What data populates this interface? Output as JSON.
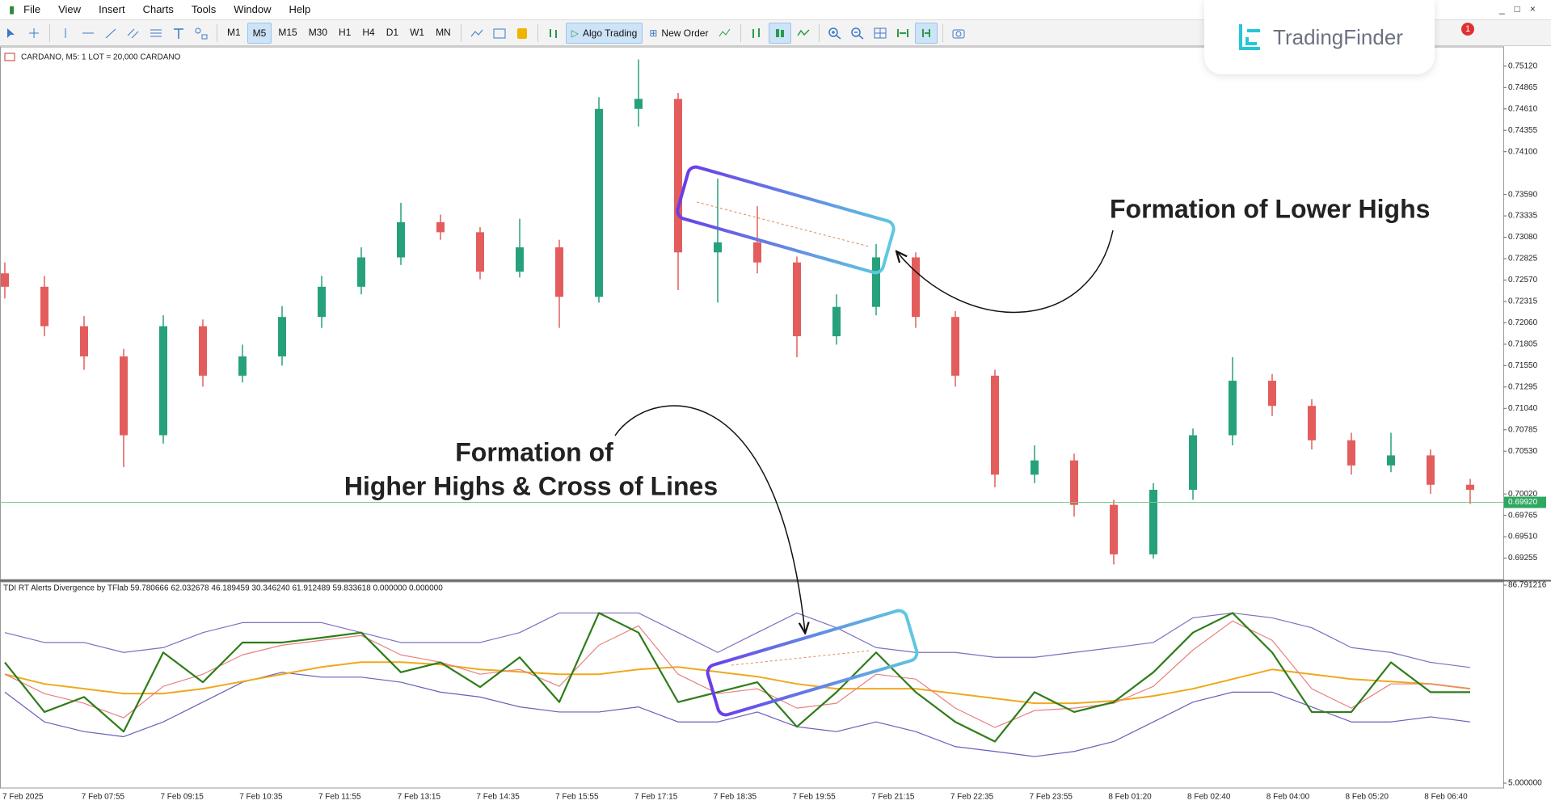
{
  "menu": [
    "File",
    "View",
    "Insert",
    "Charts",
    "Tools",
    "Window",
    "Help"
  ],
  "toolbar": {
    "timeframes": [
      "M1",
      "M5",
      "M15",
      "M30",
      "H1",
      "H4",
      "D1",
      "W1",
      "MN"
    ],
    "algo_trading": "Algo Trading",
    "new_order": "New Order"
  },
  "logo": "TradingFinder",
  "notification_count": 1,
  "chart_data": [
    {
      "type": "candlestick",
      "title": "CARDANO, M5: 1 LOT = 20,000 CARDANO",
      "open": [
        0.7265,
        0.7249,
        0.7202,
        0.7166,
        0.7072,
        0.7202,
        0.7143,
        0.7166,
        0.7213,
        0.7249,
        0.7284,
        0.7326,
        0.7314,
        0.7267,
        0.7296,
        0.7237,
        0.7461,
        0.7473,
        0.729,
        0.7302,
        0.7278,
        0.719,
        0.7225,
        0.7284,
        0.7213,
        0.7143,
        0.7025,
        0.7042,
        0.6989,
        0.693,
        0.7007,
        0.7072,
        0.7137,
        0.7107,
        0.7066,
        0.7036,
        0.7048,
        0.7013
      ],
      "high": [
        0.7278,
        0.7262,
        0.7214,
        0.7175,
        0.7215,
        0.721,
        0.718,
        0.7226,
        0.7262,
        0.7296,
        0.7349,
        0.7335,
        0.732,
        0.733,
        0.7305,
        0.7475,
        0.752,
        0.748,
        0.7378,
        0.7345,
        0.7285,
        0.724,
        0.73,
        0.729,
        0.722,
        0.715,
        0.706,
        0.705,
        0.6995,
        0.7015,
        0.708,
        0.7165,
        0.7145,
        0.7115,
        0.7075,
        0.7075,
        0.7055,
        0.702
      ],
      "low": [
        0.7235,
        0.719,
        0.715,
        0.7034,
        0.7062,
        0.713,
        0.7135,
        0.7155,
        0.72,
        0.724,
        0.7275,
        0.7305,
        0.7258,
        0.726,
        0.72,
        0.723,
        0.744,
        0.7245,
        0.723,
        0.7265,
        0.7165,
        0.718,
        0.7215,
        0.72,
        0.713,
        0.701,
        0.7015,
        0.6975,
        0.6918,
        0.6925,
        0.6995,
        0.706,
        0.7095,
        0.7055,
        0.7025,
        0.7028,
        0.7002,
        0.699
      ],
      "close": [
        0.7249,
        0.7202,
        0.7166,
        0.7072,
        0.7202,
        0.7143,
        0.7166,
        0.7213,
        0.7249,
        0.7284,
        0.7326,
        0.7314,
        0.7267,
        0.7296,
        0.7237,
        0.7461,
        0.7473,
        0.729,
        0.7302,
        0.7278,
        0.719,
        0.7225,
        0.7284,
        0.7213,
        0.7143,
        0.7025,
        0.7042,
        0.6989,
        0.693,
        0.7007,
        0.7072,
        0.7137,
        0.7107,
        0.7066,
        0.7036,
        0.7048,
        0.7013,
        0.7007
      ],
      "colors": {
        "up": "#26a17b",
        "down": "#e35d5d"
      },
      "ylim": [
        0.6901,
        0.7534
      ],
      "yticks": [
        {
          "value": 0.7512,
          "label": "0.75120"
        },
        {
          "value": 0.74865,
          "label": "0.74865"
        },
        {
          "value": 0.7461,
          "label": "0.74610"
        },
        {
          "value": 0.74355,
          "label": "0.74355"
        },
        {
          "value": 0.741,
          "label": "0.74100"
        },
        {
          "value": 0.7359,
          "label": "0.73590"
        },
        {
          "value": 0.73335,
          "label": "0.73335"
        },
        {
          "value": 0.7308,
          "label": "0.73080"
        },
        {
          "value": 0.72825,
          "label": "0.72825"
        },
        {
          "value": 0.7257,
          "label": "0.72570"
        },
        {
          "value": 0.72315,
          "label": "0.72315"
        },
        {
          "value": 0.7206,
          "label": "0.72060"
        },
        {
          "value": 0.71805,
          "label": "0.71805"
        },
        {
          "value": 0.7155,
          "label": "0.71550"
        },
        {
          "value": 0.71295,
          "label": "0.71295"
        },
        {
          "value": 0.7104,
          "label": "0.71040"
        },
        {
          "value": 0.70785,
          "label": "0.70785"
        },
        {
          "value": 0.7053,
          "label": "0.70530"
        },
        {
          "value": 0.7002,
          "label": "0.70020"
        },
        {
          "value": 0.69765,
          "label": "0.69765"
        },
        {
          "value": 0.6951,
          "label": "0.69510"
        },
        {
          "value": 0.69255,
          "label": "0.69255"
        }
      ],
      "current_price": {
        "value": 0.6992,
        "label": "0.69920"
      },
      "x_labels": [
        "7 Feb 2025",
        "7 Feb 07:55",
        "7 Feb 09:15",
        "7 Feb 10:35",
        "7 Feb 11:55",
        "7 Feb 13:15",
        "7 Feb 14:35",
        "7 Feb 15:55",
        "7 Feb 17:15",
        "7 Feb 18:35",
        "7 Feb 19:55",
        "7 Feb 21:15",
        "7 Feb 22:35",
        "7 Feb 23:55",
        "8 Feb 01:20",
        "8 Feb 02:40",
        "8 Feb 04:00",
        "8 Feb 05:20",
        "8 Feb 06:40"
      ],
      "annotations": [
        "Formation of Lower Highs",
        "Formation of",
        "Higher Highs & Cross of Lines"
      ]
    },
    {
      "type": "line",
      "title": "TDI RT Alerts Divergence by TFlab 59.780666 62.032678 46.189459 30.346240 61.912489 59.833618 0.000000 0.000000",
      "series": [
        {
          "color": "#7b6fc0",
          "values": [
            67.2,
            63.1,
            63.1,
            59.0,
            61.0,
            67.2,
            71.3,
            71.3,
            71.3,
            67.2,
            63.1,
            63.1,
            63.1,
            67.2,
            75.3,
            75.3,
            75.3,
            67.2,
            59.0,
            67.2,
            75.3,
            69.2,
            61.0,
            59.0,
            59.0,
            57.0,
            57.0,
            59.0,
            61.0,
            63.1,
            73.3,
            75.3,
            73.3,
            69.2,
            61.0,
            59.0,
            54.9,
            52.8
          ]
        },
        {
          "color": "#6a5fb8",
          "values": [
            42.6,
            30.3,
            26.3,
            24.2,
            30.3,
            38.5,
            46.7,
            50.8,
            48.8,
            48.8,
            46.7,
            42.6,
            40.6,
            36.5,
            34.4,
            34.4,
            36.5,
            30.3,
            30.3,
            34.4,
            28.3,
            26.3,
            30.3,
            26.3,
            20.1,
            18.1,
            16.0,
            18.1,
            22.2,
            30.3,
            38.5,
            42.6,
            42.6,
            36.5,
            30.3,
            30.3,
            32.4,
            30.3
          ]
        },
        {
          "color": "#f0a81c",
          "values": [
            50,
            46,
            44,
            42,
            42,
            44,
            47,
            50,
            53,
            55,
            55,
            54,
            52,
            51,
            50,
            50,
            52,
            53,
            51,
            49,
            46,
            44,
            44,
            44,
            42,
            40,
            38,
            38,
            39,
            41,
            44,
            48,
            52,
            50,
            48,
            47,
            46,
            44
          ]
        },
        {
          "color": "#e88080",
          "values": [
            50,
            42,
            38,
            32,
            45,
            50,
            58,
            62,
            64,
            66,
            58,
            55,
            50,
            52,
            45,
            62,
            70,
            50,
            42,
            44,
            36,
            38,
            50,
            48,
            36,
            28,
            35,
            36,
            38,
            45,
            60,
            72,
            64,
            44,
            36,
            46,
            46,
            44
          ]
        },
        {
          "color": "#2e7d18",
          "values": [
            54.9,
            34.4,
            40.6,
            26.3,
            59.0,
            46.7,
            63.1,
            63.1,
            65.1,
            67.2,
            50.8,
            54.9,
            44.7,
            57.0,
            38.5,
            75.3,
            67.2,
            38.5,
            42.6,
            46.7,
            28.3,
            42.6,
            59.0,
            42.6,
            30.3,
            22.2,
            42.6,
            34.4,
            38.5,
            50.8,
            67.2,
            75.3,
            59.0,
            34.4,
            34.4,
            54.9,
            42.6,
            42.6
          ]
        }
      ],
      "ylim": [
        5,
        86.791216
      ],
      "yticks": [
        {
          "value": 86.791216,
          "label": "86.791216"
        },
        {
          "value": 5,
          "label": "5.000000"
        }
      ]
    }
  ]
}
